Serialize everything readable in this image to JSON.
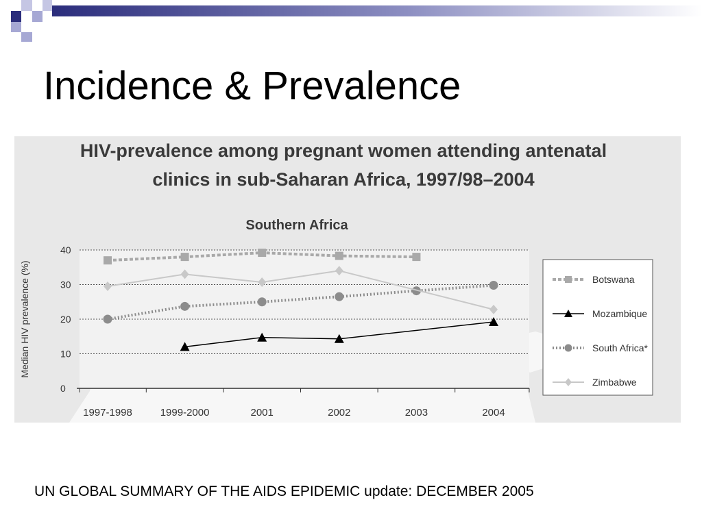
{
  "slide": {
    "title": "Incidence & Prevalence",
    "footer": "UN GLOBAL SUMMARY OF THE AIDS EPIDEMIC update: DECEMBER 2005"
  },
  "colors": {
    "accent_navy": "#2b2d7c",
    "accent_lavender": "#a6a8d4",
    "figure_bg": "#e8e8e8"
  },
  "chart_data": {
    "type": "line",
    "title": "HIV-prevalence among pregnant women attending antenatal clinics in sub-Saharan Africa, 1997/98–2004",
    "title_lines": [
      "HIV-prevalence among pregnant women attending antenatal",
      "clinics in sub-Saharan Africa, 1997/98–2004"
    ],
    "subtitle": "Southern Africa",
    "xlabel": "",
    "ylabel": "Median HIV prevalence (%)",
    "categories": [
      "1997-1998",
      "1999-2000",
      "2001",
      "2002",
      "2003",
      "2004"
    ],
    "ylim": [
      0,
      40
    ],
    "yticks": [
      0,
      10,
      20,
      30,
      40
    ],
    "grid": true,
    "legend_position": "right",
    "series": [
      {
        "name": "Botswana",
        "values": [
          37,
          38,
          39.2,
          38.3,
          38,
          null
        ],
        "color": "#a9a9a9",
        "style": "dashed",
        "marker": "square"
      },
      {
        "name": "Mozambique",
        "values": [
          null,
          12,
          14.7,
          14.3,
          null,
          19.2
        ],
        "color": "#000000",
        "style": "solid",
        "marker": "triangle"
      },
      {
        "name": "South Africa*",
        "values": [
          20,
          23.7,
          25,
          26.5,
          28.2,
          29.8
        ],
        "color": "#8c8c8c",
        "style": "dotted",
        "marker": "circle"
      },
      {
        "name": "Zimbabwe",
        "values": [
          29.5,
          33,
          30.7,
          34,
          null,
          22.8
        ],
        "color": "#c8c8c8",
        "style": "solid",
        "marker": "diamond"
      }
    ]
  }
}
